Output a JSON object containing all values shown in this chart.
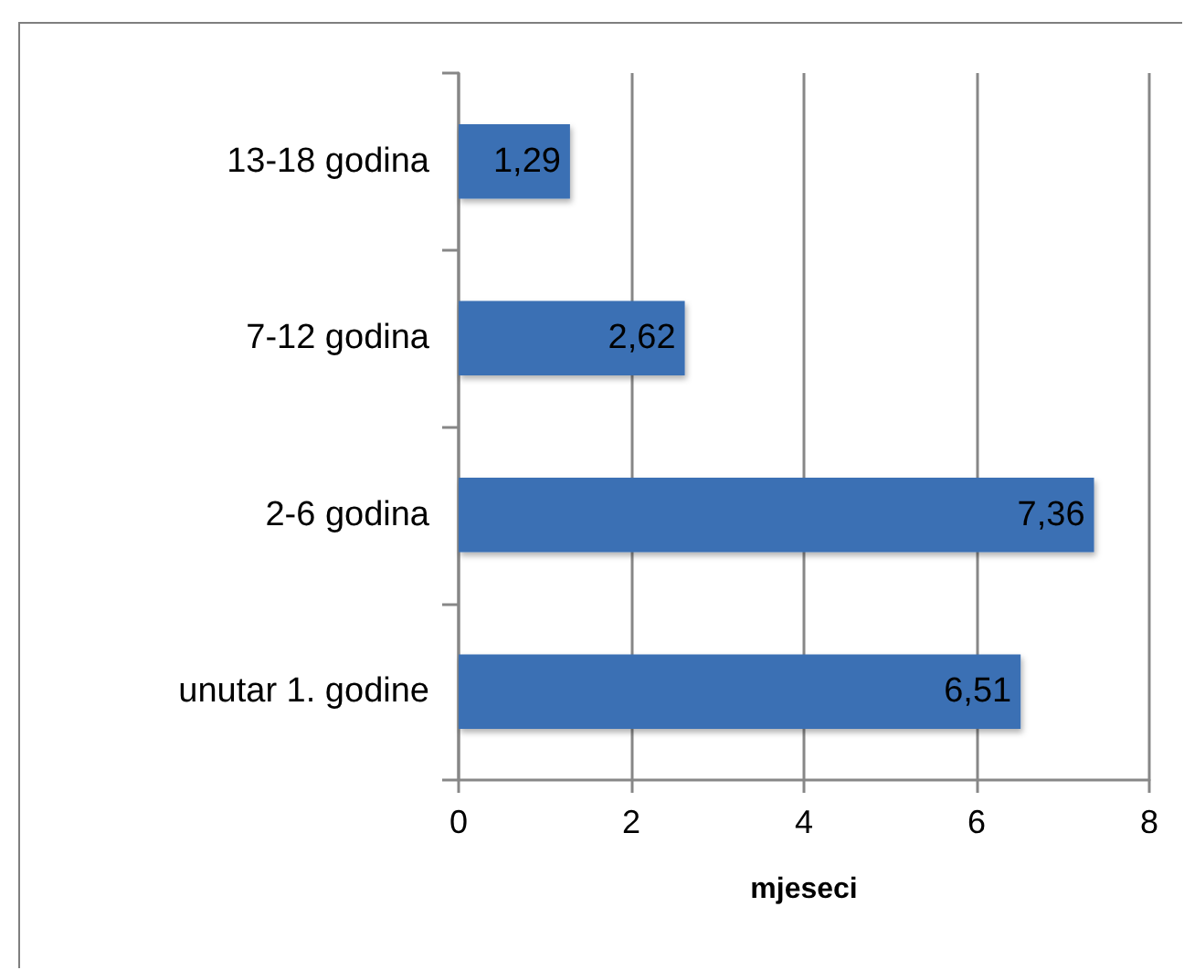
{
  "chart_data": {
    "type": "bar",
    "orientation": "horizontal",
    "categories": [
      "13-18 godina",
      "7-12 godina",
      "2-6 godina",
      "unutar 1. godine"
    ],
    "values": [
      1.29,
      2.62,
      7.36,
      6.51
    ],
    "value_labels": [
      "1,29",
      "2,62",
      "7,36",
      "6,51"
    ],
    "color": "#3a6fb4",
    "xlabel": "mjeseci",
    "xlim": [
      0,
      8
    ],
    "xticks": [
      0,
      2,
      4,
      6,
      8
    ],
    "grid": "x"
  }
}
